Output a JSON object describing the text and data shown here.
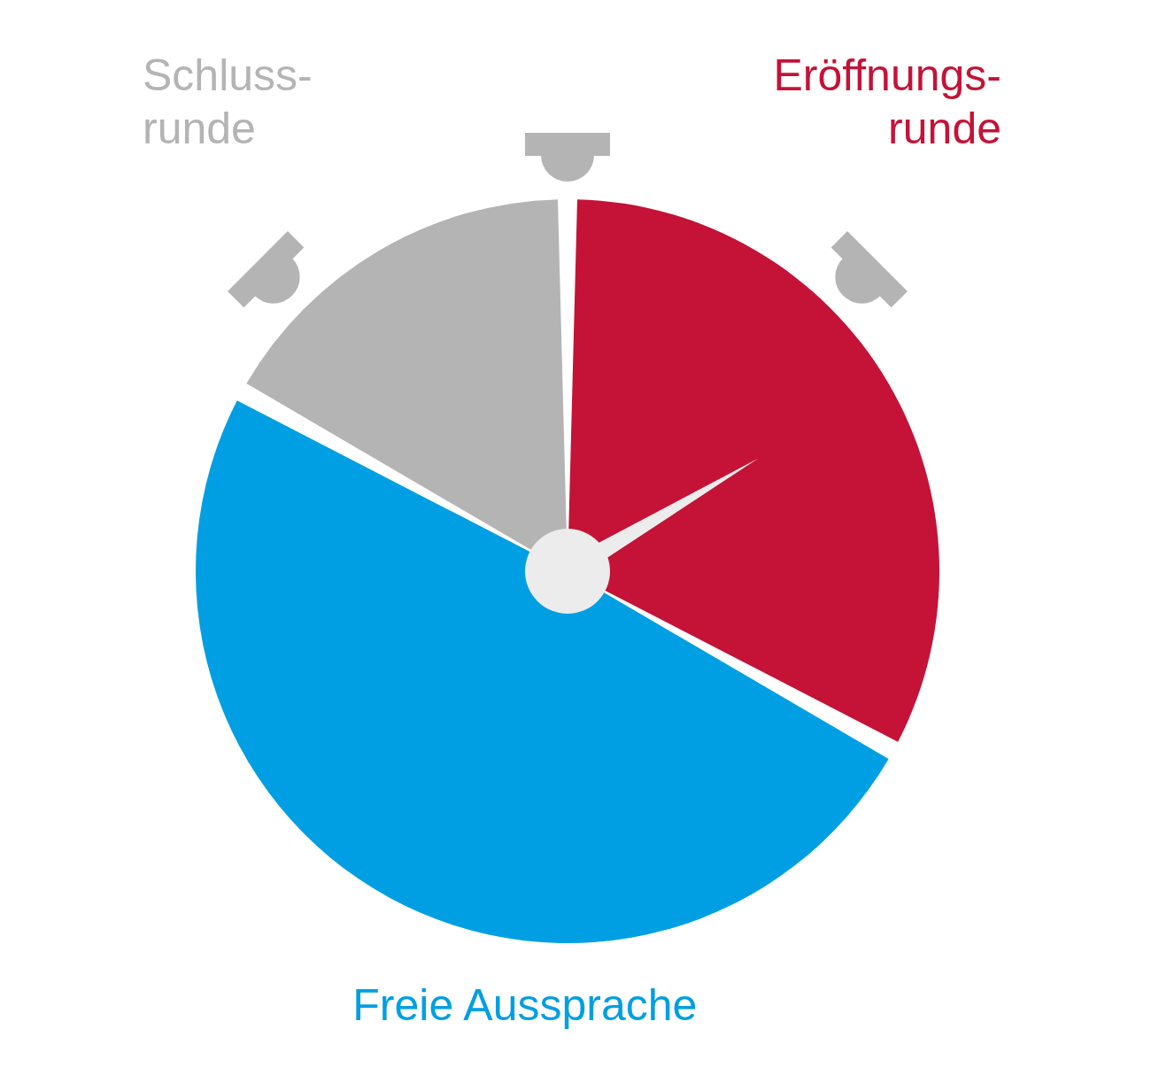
{
  "chart_data": {
    "type": "pie",
    "categories": [
      "Eröffnungs-\nrunde",
      "Freie Aussprache",
      "Schluss-\nrunde"
    ],
    "values": [
      33,
      50,
      17
    ],
    "colors": [
      "#c41337",
      "#009fe3",
      "#b4b4b4"
    ],
    "needle": "Eröffnungs-\nrunde"
  }
}
